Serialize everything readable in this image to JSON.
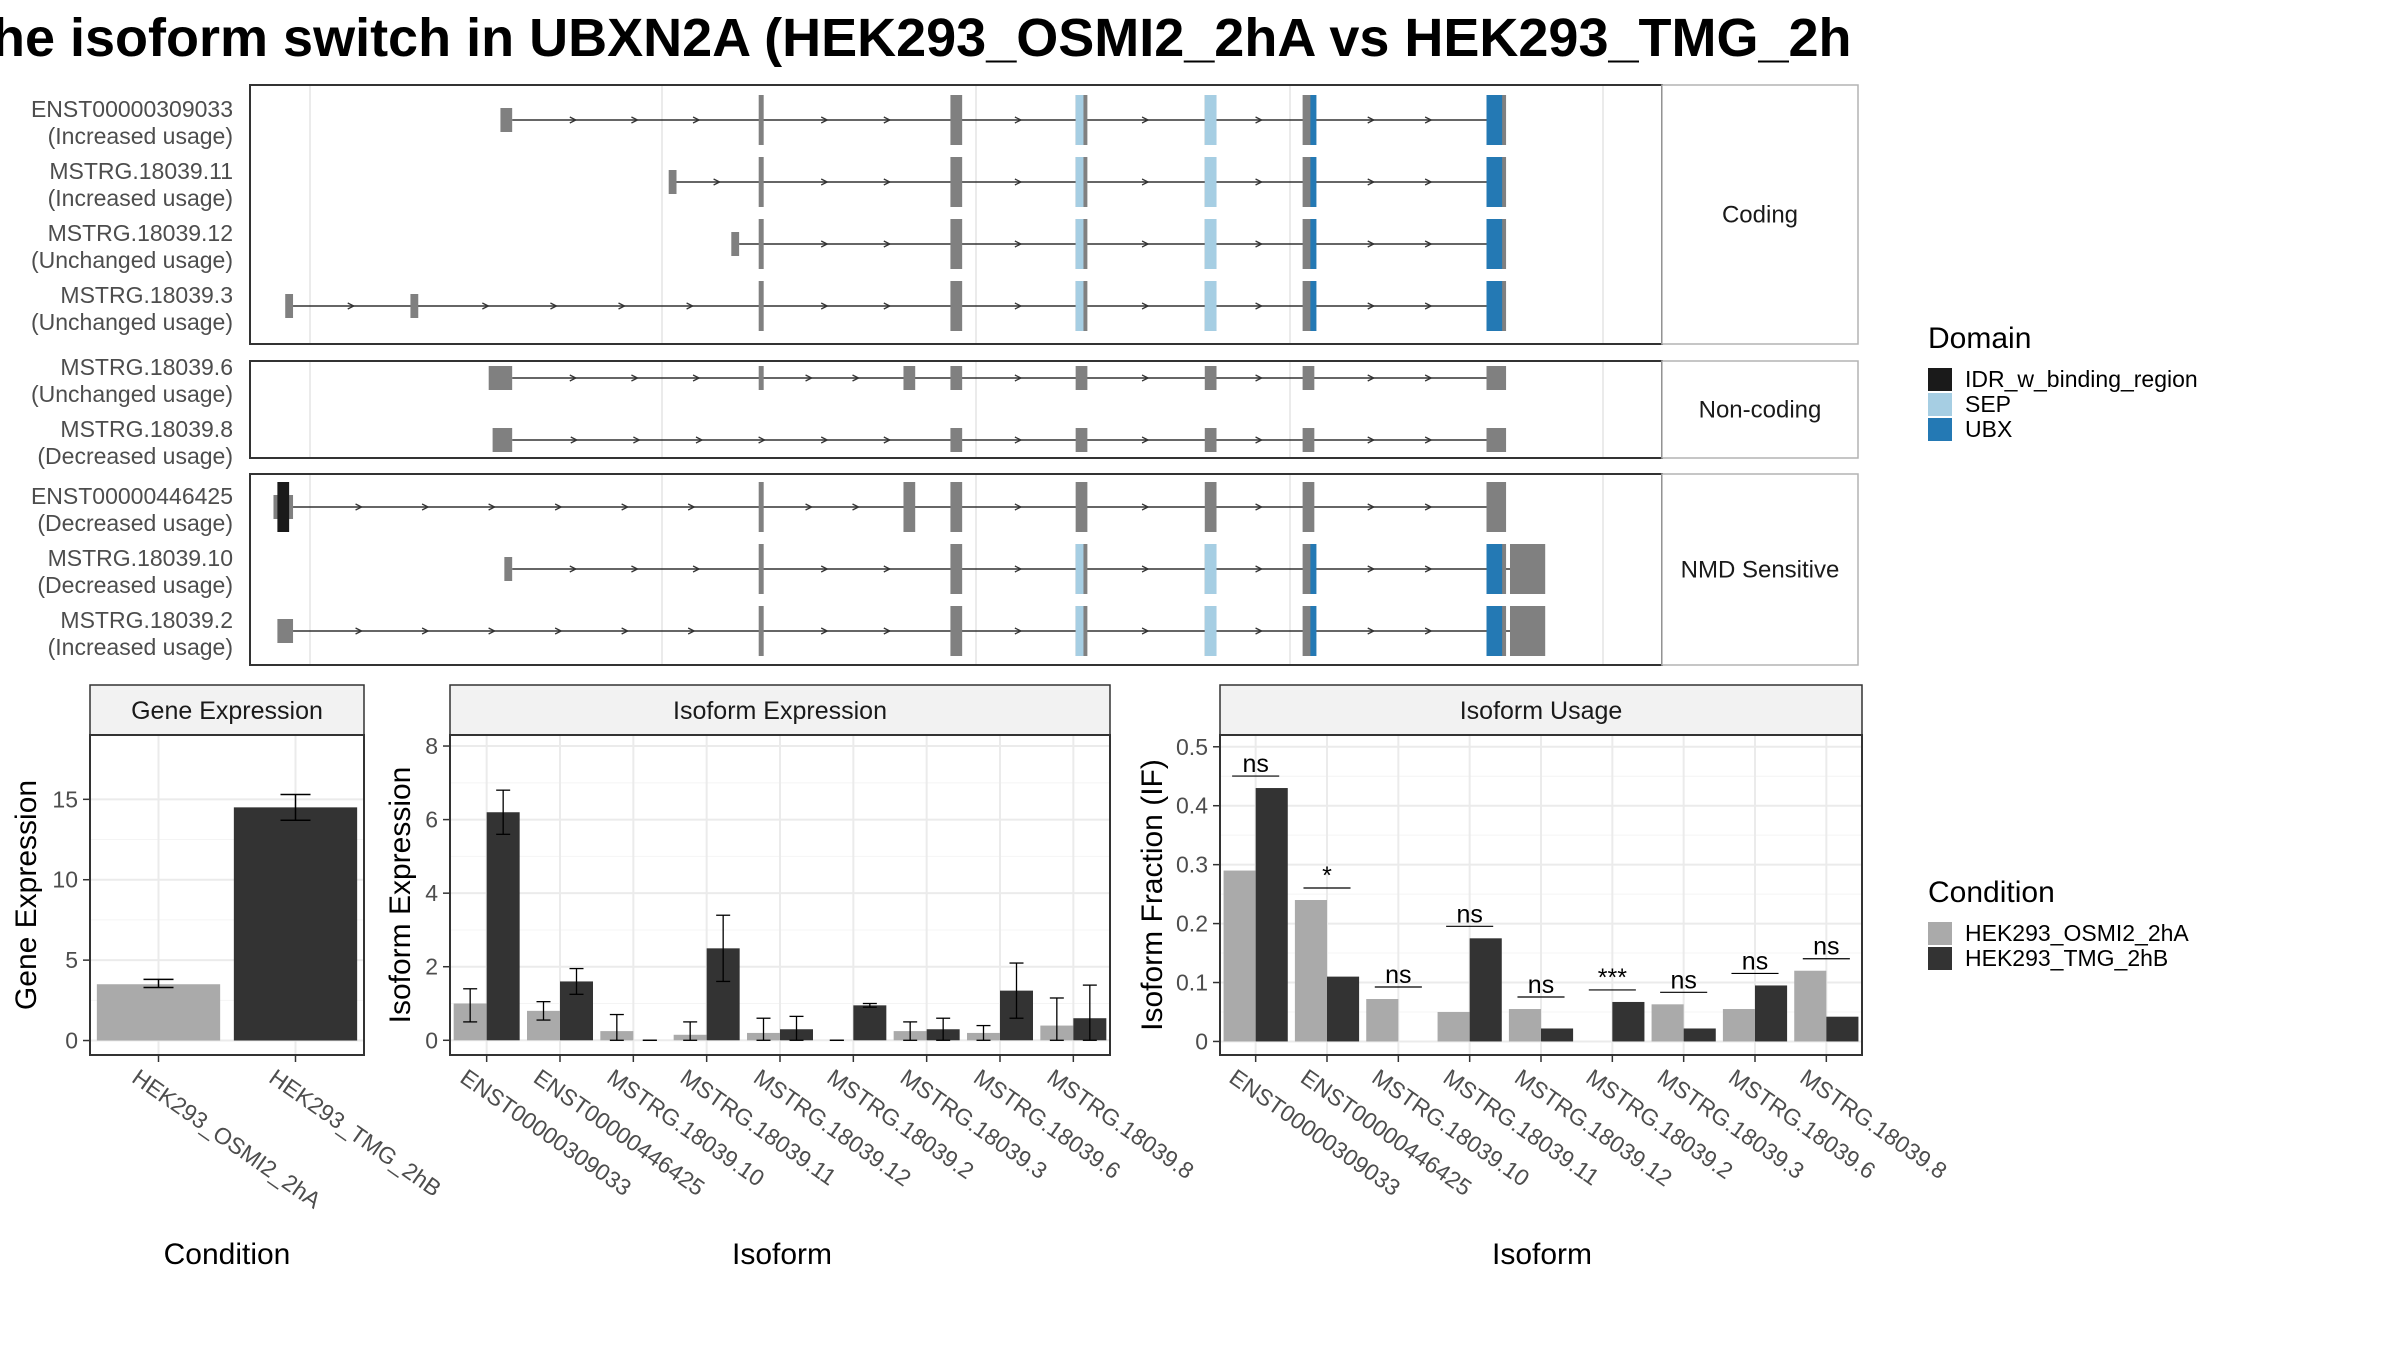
{
  "title": "he isoform switch in UBXN2A (HEK293_OSMI2_2hA vs HEK293_TMG_2h",
  "colors": {
    "exon": "#808080",
    "intron": "#333333",
    "IDR_w_binding_region": "#1a1a1a",
    "SEP": "#a6cee3",
    "UBX": "#2479b4",
    "HEK293_OSMI2_2hA": "#aaaaaa",
    "HEK293_TMG_2hB": "#333333",
    "strip": "#f2f2f2",
    "grid": "#ebebeb",
    "panel_border": "#333333"
  },
  "structure": {
    "groups": [
      {
        "label": "Coding",
        "isoforms": [
          {
            "id": "ENST00000309033",
            "usage": "(Increased usage)",
            "exons": [
              [
                105,
                108
              ],
              [
                171,
                172
              ],
              [
                220,
                223
              ],
              [
                252,
                255
              ],
              [
                285,
                288
              ],
              [
                310,
                313
              ],
              [
                357,
                362
              ]
            ],
            "domains": [
              [
                252,
                254,
                "SEP"
              ],
              [
                285,
                288,
                "SEP"
              ],
              [
                312,
                313,
                "UBX"
              ],
              [
                357,
                361,
                "UBX"
              ]
            ]
          },
          {
            "id": "MSTRG.18039.11",
            "usage": "(Increased usage)",
            "exons": [
              [
                148,
                150
              ],
              [
                171,
                172
              ],
              [
                220,
                223
              ],
              [
                252,
                255
              ],
              [
                285,
                288
              ],
              [
                310,
                313
              ],
              [
                357,
                362
              ]
            ],
            "domains": [
              [
                252,
                254,
                "SEP"
              ],
              [
                285,
                288,
                "SEP"
              ],
              [
                312,
                313,
                "UBX"
              ],
              [
                357,
                361,
                "UBX"
              ]
            ]
          },
          {
            "id": "MSTRG.18039.12",
            "usage": "(Unchanged usage)",
            "exons": [
              [
                164,
                166
              ],
              [
                171,
                172
              ],
              [
                220,
                223
              ],
              [
                252,
                255
              ],
              [
                285,
                288
              ],
              [
                310,
                313
              ],
              [
                357,
                362
              ]
            ],
            "domains": [
              [
                252,
                254,
                "SEP"
              ],
              [
                285,
                288,
                "SEP"
              ],
              [
                312,
                313,
                "UBX"
              ],
              [
                357,
                361,
                "UBX"
              ]
            ]
          },
          {
            "id": "MSTRG.18039.3",
            "usage": "(Unchanged usage)",
            "exons": [
              [
                50,
                52
              ],
              [
                82,
                84
              ],
              [
                171,
                172
              ],
              [
                220,
                223
              ],
              [
                252,
                255
              ],
              [
                285,
                288
              ],
              [
                310,
                313
              ],
              [
                357,
                362
              ]
            ],
            "domains": [
              [
                252,
                254,
                "SEP"
              ],
              [
                285,
                288,
                "SEP"
              ],
              [
                312,
                313,
                "UBX"
              ],
              [
                357,
                361,
                "UBX"
              ]
            ]
          }
        ]
      },
      {
        "label": "Non-coding",
        "isoforms": [
          {
            "id": "MSTRG.18039.6",
            "usage": "(Unchanged usage)",
            "exons": [
              [
                102,
                108
              ],
              [
                171,
                172
              ],
              [
                208,
                211
              ],
              [
                220,
                223
              ],
              [
                252,
                255
              ],
              [
                285,
                288
              ],
              [
                310,
                313
              ],
              [
                357,
                362
              ]
            ],
            "domains": []
          },
          {
            "id": "MSTRG.18039.8",
            "usage": "(Decreased usage)",
            "exons": [
              [
                103,
                108
              ],
              [
                220,
                223
              ],
              [
                252,
                255
              ],
              [
                285,
                288
              ],
              [
                310,
                313
              ],
              [
                357,
                362
              ]
            ],
            "domains": []
          }
        ]
      },
      {
        "label": "NMD Sensitive",
        "isoforms": [
          {
            "id": "ENST00000446425",
            "usage": "(Decreased usage)",
            "exons": [
              [
                47,
                52
              ],
              [
                171,
                172
              ],
              [
                208,
                211
              ],
              [
                220,
                223
              ],
              [
                252,
                255
              ],
              [
                285,
                288
              ],
              [
                310,
                313
              ],
              [
                357,
                362
              ]
            ],
            "domains": [
              [
                48,
                51,
                "IDR_w_binding_region"
              ]
            ]
          },
          {
            "id": "MSTRG.18039.10",
            "usage": "(Decreased usage)",
            "exons": [
              [
                106,
                108
              ],
              [
                171,
                172
              ],
              [
                220,
                223
              ],
              [
                252,
                255
              ],
              [
                285,
                288
              ],
              [
                310,
                313
              ],
              [
                357,
                362
              ],
              [
                363,
                372
              ]
            ],
            "domains": [
              [
                252,
                254,
                "SEP"
              ],
              [
                285,
                288,
                "SEP"
              ],
              [
                312,
                313,
                "UBX"
              ],
              [
                357,
                361,
                "UBX"
              ]
            ]
          },
          {
            "id": "MSTRG.18039.2",
            "usage": "(Increased usage)",
            "exons": [
              [
                48,
                52
              ],
              [
                171,
                172
              ],
              [
                220,
                223
              ],
              [
                252,
                255
              ],
              [
                285,
                288
              ],
              [
                310,
                313
              ],
              [
                357,
                362
              ],
              [
                363,
                372
              ]
            ],
            "domains": [
              [
                252,
                254,
                "SEP"
              ],
              [
                285,
                288,
                "SEP"
              ],
              [
                312,
                313,
                "UBX"
              ],
              [
                357,
                361,
                "UBX"
              ]
            ]
          }
        ]
      }
    ],
    "legend_title": "Domain",
    "legend": [
      "IDR_w_binding_region",
      "SEP",
      "UBX"
    ]
  },
  "chart_data": [
    {
      "type": "bar",
      "title": "Gene Expression",
      "xlabel": "Condition",
      "ylabel": "Gene Expression",
      "categories": [
        "HEK293_OSMI2_2hA",
        "HEK293_TMG_2hB"
      ],
      "values": [
        3.5,
        14.5
      ],
      "errors": [
        [
          3.3,
          3.8
        ],
        [
          13.7,
          15.3
        ]
      ],
      "ylim": [
        -0.9,
        19
      ],
      "yticks": [
        0,
        5,
        10,
        15
      ],
      "grid": true
    },
    {
      "type": "bar",
      "title": "Isoform Expression",
      "xlabel": "Isoform",
      "ylabel": "Isoform Expression",
      "categories": [
        "ENST00000309033",
        "ENST00000446425",
        "MSTRG.18039.10",
        "MSTRG.18039.11",
        "MSTRG.18039.12",
        "MSTRG.18039.2",
        "MSTRG.18039.3",
        "MSTRG.18039.6",
        "MSTRG.18039.8"
      ],
      "series": [
        {
          "name": "HEK293_OSMI2_2hA",
          "values": [
            1.0,
            0.8,
            0.25,
            0.15,
            0.2,
            0.0,
            0.25,
            0.2,
            0.4
          ],
          "errors": [
            [
              0.5,
              1.4
            ],
            [
              0.55,
              1.05
            ],
            [
              0.0,
              0.7
            ],
            [
              0.0,
              0.5
            ],
            [
              0.0,
              0.6
            ],
            [
              0.0,
              0.0
            ],
            [
              0.0,
              0.5
            ],
            [
              0.0,
              0.4
            ],
            [
              0.0,
              1.15
            ]
          ]
        },
        {
          "name": "HEK293_TMG_2hB",
          "values": [
            6.2,
            1.6,
            0.0,
            2.5,
            0.3,
            0.95,
            0.3,
            1.35,
            0.6
          ],
          "errors": [
            [
              5.6,
              6.8
            ],
            [
              1.25,
              1.95
            ],
            [
              0.0,
              0.0
            ],
            [
              1.6,
              3.4
            ],
            [
              0.0,
              0.65
            ],
            [
              0.9,
              1.0
            ],
            [
              0.0,
              0.6
            ],
            [
              0.6,
              2.1
            ],
            [
              0.0,
              1.5
            ]
          ]
        }
      ],
      "ylim": [
        -0.4,
        8.3
      ],
      "yticks": [
        0,
        2,
        4,
        6,
        8
      ],
      "grid": true
    },
    {
      "type": "bar",
      "title": "Isoform Usage",
      "xlabel": "Isoform",
      "ylabel": "Isoform Fraction (IF)",
      "categories": [
        "ENST00000309033",
        "ENST00000446425",
        "MSTRG.18039.10",
        "MSTRG.18039.11",
        "MSTRG.18039.12",
        "MSTRG.18039.2",
        "MSTRG.18039.3",
        "MSTRG.18039.6",
        "MSTRG.18039.8"
      ],
      "series": [
        {
          "name": "HEK293_OSMI2_2hA",
          "values": [
            0.29,
            0.24,
            0.072,
            0.05,
            0.055,
            0.0,
            0.063,
            0.055,
            0.12
          ]
        },
        {
          "name": "HEK293_TMG_2hB",
          "values": [
            0.43,
            0.11,
            0.0,
            0.175,
            0.022,
            0.067,
            0.022,
            0.095,
            0.042
          ]
        }
      ],
      "significance": [
        "ns",
        "*",
        "ns",
        "ns",
        "ns",
        "***",
        "ns",
        "ns",
        "ns"
      ],
      "ylim": [
        -0.023,
        0.52
      ],
      "yticks": [
        0.0,
        0.1,
        0.2,
        0.3,
        0.4,
        0.5
      ],
      "grid": true
    }
  ],
  "condition_legend": {
    "title": "Condition",
    "items": [
      "HEK293_OSMI2_2hA",
      "HEK293_TMG_2hB"
    ]
  }
}
